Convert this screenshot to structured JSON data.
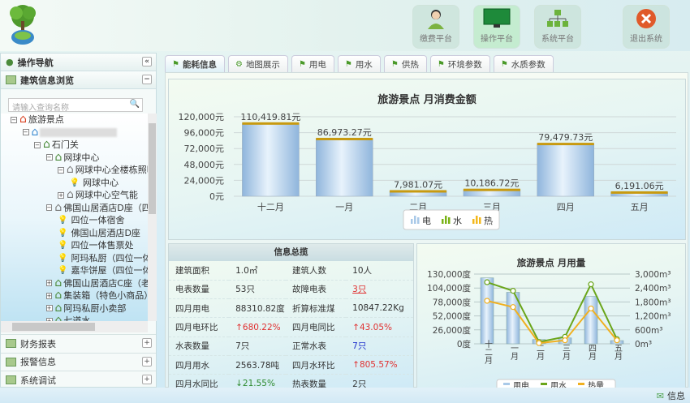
{
  "header": {
    "buttons": [
      {
        "label": "缴费平台",
        "icon": "user-icon"
      },
      {
        "label": "操作平台",
        "icon": "monitor-icon",
        "active": true
      },
      {
        "label": "系统平台",
        "icon": "sitemap-icon"
      },
      {
        "label": "退出系统",
        "icon": "close-icon"
      }
    ]
  },
  "sidebar": {
    "nav_title": "操作导航",
    "collapse": "«",
    "section_title": "建筑信息浏览",
    "section_toggle": "−",
    "search_placeholder": "请输入查询名称",
    "tree": [
      {
        "label": "旅游景点",
        "level": 0,
        "exp": "−",
        "icon": "root"
      },
      {
        "label": "",
        "level": 1,
        "exp": "−",
        "icon": "house-blue"
      },
      {
        "label": "石门关",
        "level": 2,
        "exp": "−",
        "icon": "house"
      },
      {
        "label": "网球中心",
        "level": 3,
        "exp": "−",
        "icon": "house"
      },
      {
        "label": "网球中心全楼栋照明",
        "level": 4,
        "exp": "−",
        "icon": "house-gray"
      },
      {
        "label": "网球中心",
        "level": 5,
        "icon": "bulb"
      },
      {
        "label": "网球中心空气能",
        "level": 4,
        "exp": "+",
        "icon": "house-gray"
      },
      {
        "label": "佛国山居酒店D座（四",
        "level": 3,
        "exp": "−",
        "icon": "house-gray"
      },
      {
        "label": "四位一体宿舍",
        "level": 4,
        "icon": "bulb"
      },
      {
        "label": "佛国山居酒店D座",
        "level": 4,
        "icon": "bulb"
      },
      {
        "label": "四位一体售票处",
        "level": 4,
        "icon": "bulb"
      },
      {
        "label": "阿玛私厨（四位一体",
        "level": 4,
        "icon": "bulb"
      },
      {
        "label": "嘉华饼屋（四位一体",
        "level": 4,
        "icon": "bulb"
      },
      {
        "label": "佛国山居酒店C座（老",
        "level": 3,
        "exp": "+",
        "icon": "house"
      },
      {
        "label": "集装箱（特色小商品）",
        "level": 3,
        "exp": "+",
        "icon": "house"
      },
      {
        "label": "阿玛私厨小卖部",
        "level": 3,
        "exp": "+",
        "icon": "house"
      },
      {
        "label": "七道水",
        "level": 3,
        "exp": "+",
        "icon": "house"
      }
    ],
    "accordion": [
      {
        "label": "财务报表",
        "toggle": "+"
      },
      {
        "label": "报警信息",
        "toggle": "+"
      },
      {
        "label": "系统调试",
        "toggle": "+"
      }
    ]
  },
  "tabs": [
    {
      "label": "能耗信息",
      "active": true,
      "icon": "flag-icon"
    },
    {
      "label": "地图展示",
      "icon": "gear-icon"
    },
    {
      "label": "用电",
      "icon": "flag-icon"
    },
    {
      "label": "用水",
      "icon": "flag-icon"
    },
    {
      "label": "供热",
      "icon": "flag-icon"
    },
    {
      "label": "环境参数",
      "icon": "flag-icon"
    },
    {
      "label": "水质参数",
      "icon": "flag-icon"
    }
  ],
  "info": {
    "title": "信息总揽",
    "rows": [
      [
        {
          "t": "建筑面积"
        },
        {
          "t": "1.0㎡"
        },
        {
          "t": "建筑人数"
        },
        {
          "t": "10人"
        }
      ],
      [
        {
          "t": "电表数量"
        },
        {
          "t": "53只"
        },
        {
          "t": "故障电表"
        },
        {
          "t": "3只",
          "c": "link"
        }
      ],
      [
        {
          "t": "四月用电"
        },
        {
          "t": "88310.82度"
        },
        {
          "t": "折算标准煤"
        },
        {
          "t": "10847.22Kg"
        }
      ],
      [
        {
          "t": "四月电环比"
        },
        {
          "t": "↑680.22%",
          "c": "red"
        },
        {
          "t": "四月电同比"
        },
        {
          "t": "↑43.05%",
          "c": "red"
        }
      ],
      [
        {
          "t": "水表数量"
        },
        {
          "t": "7只"
        },
        {
          "t": "正常水表"
        },
        {
          "t": "7只",
          "c": "blue"
        }
      ],
      [
        {
          "t": "四月用水"
        },
        {
          "t": "2563.78吨"
        },
        {
          "t": "四月水环比"
        },
        {
          "t": "↑805.57%",
          "c": "red"
        }
      ],
      [
        {
          "t": "四月水同比"
        },
        {
          "t": "↓21.55%",
          "c": "green"
        },
        {
          "t": "热表数量"
        },
        {
          "t": "2只"
        }
      ]
    ]
  },
  "footer": {
    "message": "信息"
  },
  "chart_data": [
    {
      "type": "bar",
      "title": "旅游景点 月消费金额",
      "categories": [
        "十二月",
        "一月",
        "二月",
        "三月",
        "四月",
        "五月"
      ],
      "values": [
        110419.81,
        86973.27,
        7981.07,
        10186.72,
        79479.73,
        6191.06
      ],
      "labels": [
        "110,419.81元",
        "86,973.27元",
        "7,981.07元",
        "10,186.72元",
        "79,479.73元",
        "6,191.06元"
      ],
      "yticks": [
        "0元",
        "24,000元",
        "48,000元",
        "72,000元",
        "96,000元",
        "120,000元"
      ],
      "ylim": [
        0,
        120000
      ],
      "legend": [
        "电",
        "水",
        "热"
      ],
      "legend_position": "bottom",
      "colors": {
        "bar": "#a9c9e8",
        "cap": "#c89a10",
        "water": "#7ab317",
        "heat": "#f3b81c"
      },
      "grid": true
    },
    {
      "type": "bar+line",
      "title": "旅游景点 月用量",
      "categories": [
        "十二月",
        "一月",
        "二月",
        "三月",
        "四月",
        "五月"
      ],
      "series": [
        {
          "name": "用电",
          "axis": "left",
          "type": "bar",
          "values": [
            123000,
            96000,
            8000,
            11000,
            88300,
            6000
          ]
        },
        {
          "name": "用水",
          "axis": "right",
          "type": "line",
          "values": [
            2650,
            2280,
            80,
            300,
            2560,
            200
          ]
        },
        {
          "name": "热量",
          "axis": "right",
          "type": "line",
          "values": [
            1850,
            1580,
            30,
            150,
            1520,
            150
          ]
        }
      ],
      "yticks_left": [
        "0度",
        "26,000度",
        "52,000度",
        "78,000度",
        "104,000度",
        "130,000度"
      ],
      "ylim_left": [
        0,
        130000
      ],
      "yticks_right": [
        "0m³",
        "600m³",
        "1,200m³",
        "1,800m³",
        "2,400m³",
        "3,000m³"
      ],
      "ylim_right": [
        0,
        3000
      ],
      "colors": {
        "bar": "#a9c9e8",
        "water": "#6aa51a",
        "heat": "#f0b020"
      },
      "legend_position": "bottom",
      "grid": true
    }
  ]
}
